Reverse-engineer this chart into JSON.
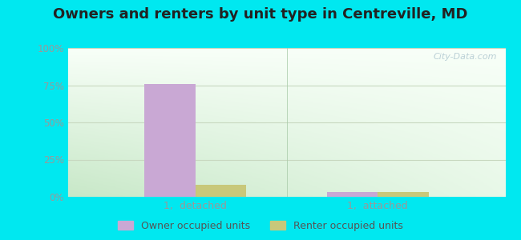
{
  "title": "Owners and renters by unit type in Centreville, MD",
  "title_fontsize": 13,
  "categories": [
    "1,  detached",
    "1,  attached"
  ],
  "owner_values": [
    76,
    3
  ],
  "renter_values": [
    8,
    3
  ],
  "owner_color": "#c9a8d4",
  "renter_color": "#c8c87a",
  "ylim": [
    0,
    100
  ],
  "yticks": [
    0,
    25,
    50,
    75,
    100
  ],
  "yticklabels": [
    "0%",
    "25%",
    "50%",
    "75%",
    "100%"
  ],
  "background_outer": "#00e8f0",
  "grid_color": "#c8d8c0",
  "legend_owner": "Owner occupied units",
  "legend_renter": "Renter occupied units",
  "bar_width": 0.28,
  "watermark": "City-Data.com",
  "tick_color": "#999999",
  "title_color": "#222222"
}
